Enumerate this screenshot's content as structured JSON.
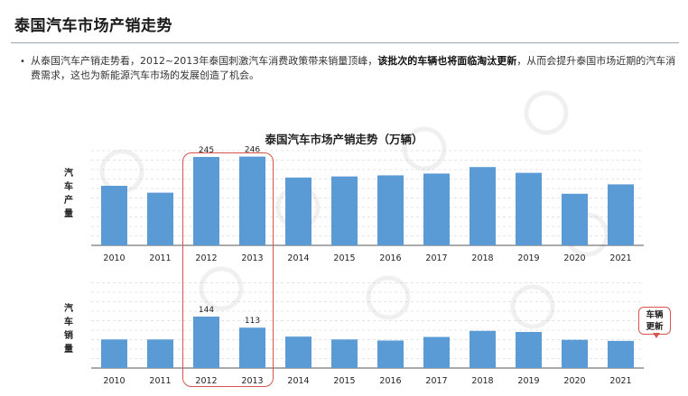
{
  "page": {
    "title": "泰国汽车市场产销走势",
    "bullet_parts": [
      "从泰国汽车产销走势看，2012~2013年泰国刺激汽车消费政策带来销量顶峰，",
      "该批次的车辆也将面临淘汰更新",
      "，从而会提升泰国市场近期的汽车消费需求，这也为新能源汽车市场的发展创造了机会。"
    ],
    "callout": [
      "车辆",
      "更新"
    ]
  },
  "colors": {
    "bar": "#5b9bd5",
    "highlight": "#d9534f",
    "grid": "#c9c9c9"
  },
  "chart_data": {
    "type": "bar",
    "title": "泰国汽车市场产销走势（万辆）",
    "categories": [
      "2010",
      "2011",
      "2012",
      "2013",
      "2014",
      "2015",
      "2016",
      "2017",
      "2018",
      "2019",
      "2020",
      "2021"
    ],
    "series": [
      {
        "name": "汽车产量",
        "values": [
          165,
          146,
          245,
          246,
          188,
          191,
          194,
          199,
          217,
          201,
          143,
          169
        ],
        "data_labels": {
          "2": "245",
          "3": "246"
        }
      },
      {
        "name": "汽车销量",
        "values": [
          80,
          80,
          144,
          113,
          88,
          80,
          77,
          87,
          104,
          101,
          79,
          76
        ],
        "data_labels": {
          "2": "144",
          "3": "113"
        }
      }
    ],
    "ylim_production": [
      0,
      260
    ],
    "ylim_sales": [
      0,
      260
    ],
    "grid": true,
    "legend": "none",
    "highlight_categories": [
      "2012",
      "2013"
    ]
  }
}
